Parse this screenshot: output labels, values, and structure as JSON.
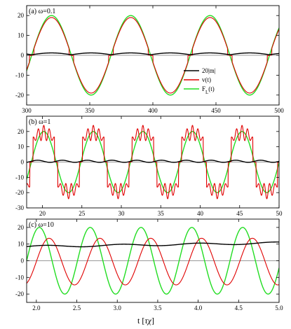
{
  "chart_data": {
    "type": "line",
    "xlabel_main": "t [",
    "xlabel_tau": "τ",
    "xlabel_chi": "χ",
    "xlabel_close": "]",
    "legend": [
      {
        "name": "20|m|",
        "color": "#000000"
      },
      {
        "name": "v(t)",
        "color": "#e00000"
      },
      {
        "name": "F",
        "sub": "L",
        "suffix": "(t)",
        "color": "#22dd22"
      }
    ],
    "panels": [
      {
        "label": "(a) ω=0.1",
        "xlim": [
          300,
          500
        ],
        "ylim": [
          -25,
          25
        ],
        "xticks": [
          300,
          350,
          400,
          450,
          500
        ],
        "xtick_labels": [
          "300",
          "350",
          "400",
          "450",
          "500"
        ],
        "yticks": [
          -20,
          -10,
          0,
          10,
          20
        ],
        "ytick_labels": [
          "-20",
          "-10",
          "0",
          "10",
          "20"
        ],
        "show_legend": true,
        "force_amplitude": 20,
        "force_period": 62.8,
        "force_phase_x": 304,
        "v_peak": 19,
        "m_baseline": 0.3,
        "m_amplitude": 0.9
      },
      {
        "label": "(b) ω=1",
        "xlim": [
          18,
          50
        ],
        "ylim": [
          -30,
          30
        ],
        "xticks": [
          20,
          25,
          30,
          35,
          40,
          45,
          50
        ],
        "xtick_labels": [
          "20",
          "25",
          "30",
          "35",
          "40",
          "45",
          "50"
        ],
        "yticks": [
          -30,
          -20,
          -10,
          0,
          10,
          20
        ],
        "ytick_labels": [
          "-30",
          "-20",
          "-10",
          "0",
          "10",
          "20"
        ],
        "show_legend": false,
        "force_amplitude": 20,
        "force_period": 6.2832,
        "force_phase_x": 18.6,
        "v_peak": 19,
        "v_ripple": 5,
        "m_baseline": 0.5,
        "m_amplitude": 0.7
      },
      {
        "label": "(c) ω=10",
        "xlim": [
          1.88,
          5.0
        ],
        "ylim": [
          -25,
          25
        ],
        "xticks": [
          2.0,
          2.5,
          3.0,
          3.5,
          4.0,
          4.5,
          5.0
        ],
        "xtick_labels": [
          "2.0",
          "2.5",
          "3.0",
          "3.5",
          "4.0",
          "4.5",
          "5.0"
        ],
        "yticks": [
          -20,
          -10,
          0,
          10,
          20
        ],
        "ytick_labels": [
          "-20",
          "-10",
          "0",
          "10",
          "20"
        ],
        "show_legend": false,
        "force_amplitude": 20,
        "force_period": 0.62832,
        "force_phase_x": 1.88,
        "v_amplitude": 14,
        "v_offset": -0.5,
        "v_lag": 0.12,
        "m_baseline": 8.5,
        "m_slope": 0.7,
        "m_amplitude": 0.6
      }
    ]
  }
}
